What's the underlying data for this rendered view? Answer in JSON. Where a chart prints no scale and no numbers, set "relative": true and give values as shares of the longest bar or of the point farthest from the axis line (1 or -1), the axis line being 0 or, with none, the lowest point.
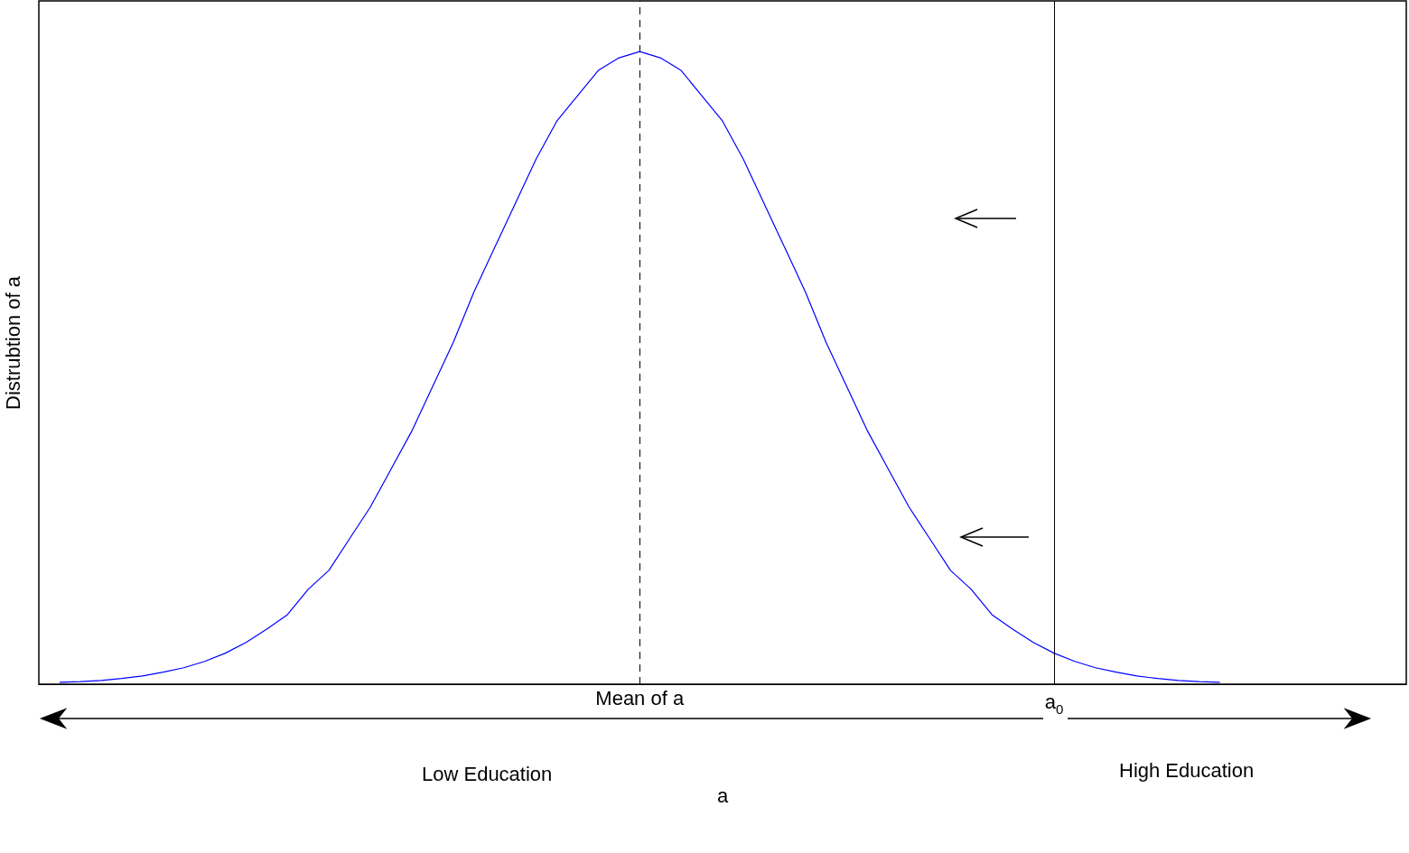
{
  "chart_data": {
    "type": "line",
    "relative": true,
    "xlabel": "a",
    "ylabel": "Distrubtion of a",
    "marker": "none",
    "categories": [
      null,
      null,
      null,
      null,
      null,
      null,
      null,
      null,
      null,
      null,
      null,
      null,
      null,
      null,
      null,
      null,
      null,
      null,
      null,
      null,
      null,
      null,
      null,
      null,
      null,
      null,
      null,
      null,
      null,
      "Mean of a",
      null,
      null,
      null,
      null,
      null,
      null,
      null,
      null,
      null,
      null,
      null,
      null,
      null,
      null,
      null,
      null,
      null,
      null,
      null,
      "a$_{0}$",
      null,
      null,
      null,
      null,
      null,
      null,
      null,
      null,
      null,
      null,
      null,
      null,
      null,
      null,
      null,
      null,
      null
    ],
    "series": [
      {
        "color": "#0000ff",
        "values": [
          null,
          0.003,
          0.004,
          0.006,
          0.009,
          0.013,
          0.019,
          0.026,
          0.036,
          0.049,
          0.066,
          0.087,
          0.11,
          0.15,
          0.18,
          0.23,
          0.28,
          0.34,
          0.4,
          0.47,
          0.54,
          0.62,
          0.69,
          0.76,
          0.83,
          0.89,
          0.93,
          0.97,
          0.99,
          1,
          0.99,
          0.97,
          0.93,
          0.89,
          0.83,
          0.76,
          0.69,
          0.62,
          0.54,
          0.47,
          0.4,
          0.34,
          0.28,
          0.23,
          0.18,
          0.15,
          0.11,
          0.087,
          0.066,
          0.049,
          0.036,
          0.026,
          0.019,
          0.013,
          0.009,
          0.006,
          0.004,
          0.003,
          null,
          null,
          null,
          null,
          null,
          null,
          null,
          null,
          null
        ]
      }
    ],
    "ref_lines": [
      {
        "axis": "x",
        "value": "Mean of a",
        "line_style": "dashed"
      },
      {
        "axis": "x",
        "value": "a$_{0}$",
        "line_style": "solid"
      }
    ],
    "annotations": [
      "Low Education",
      "High Education"
    ]
  }
}
